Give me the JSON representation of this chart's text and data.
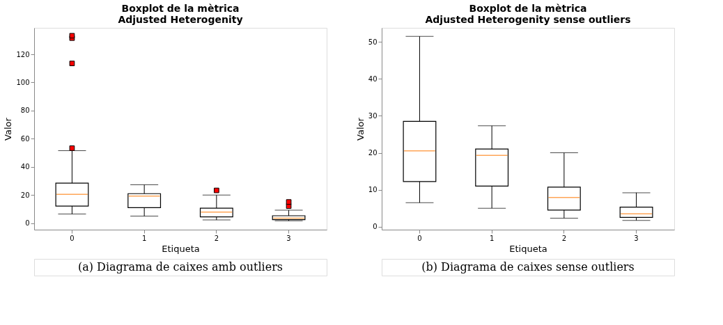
{
  "chart_data": [
    {
      "type": "box",
      "title": "Boxplot de la mètrica\nAdjusted Heterogenity",
      "xlabel": "Etiqueta",
      "ylabel": "Valor",
      "categories": [
        "0",
        "1",
        "2",
        "3"
      ],
      "ylim": [
        -4.6,
        138.8
      ],
      "yticks": [
        0,
        20,
        40,
        60,
        80,
        100,
        120
      ],
      "grid": false,
      "marker": "square",
      "series": [
        {
          "color": "#000000",
          "boxes": [
            {
              "low": 6.5,
              "q1": 12.2,
              "median": 20.5,
              "q3": 28.5,
              "high": 51.5,
              "outliers": [
                53.3,
                113.5,
                131.5,
                133.2
              ]
            },
            {
              "low": 5.0,
              "q1": 11.0,
              "median": 19.3,
              "q3": 21.0,
              "high": 27.3
            },
            {
              "low": 2.3,
              "q1": 4.5,
              "median": 7.9,
              "q3": 10.7,
              "high": 20.0,
              "outliers": [
                23.3
              ]
            },
            {
              "low": 1.7,
              "q1": 2.5,
              "median": 3.5,
              "q3": 5.3,
              "high": 9.2,
              "outliers": [
                12.1,
                15.1
              ]
            }
          ]
        }
      ],
      "annotations": [
        "(a) Diagrama de caixes amb outliers"
      ]
    },
    {
      "type": "box",
      "title": "Boxplot de la mètrica\nAdjusted Heterogenity sense outliers",
      "xlabel": "Etiqueta",
      "ylabel": "Valor",
      "categories": [
        "0",
        "1",
        "2",
        "3"
      ],
      "ylim": [
        -0.8,
        53.8
      ],
      "yticks": [
        0,
        10,
        20,
        30,
        40,
        50
      ],
      "grid": false,
      "series": [
        {
          "color": "#000000",
          "boxes": [
            {
              "low": 6.5,
              "q1": 12.2,
              "median": 20.5,
              "q3": 28.5,
              "high": 51.5
            },
            {
              "low": 5.0,
              "q1": 11.0,
              "median": 19.3,
              "q3": 21.0,
              "high": 27.3
            },
            {
              "low": 2.3,
              "q1": 4.5,
              "median": 7.9,
              "q3": 10.7,
              "high": 20.0
            },
            {
              "low": 1.7,
              "q1": 2.5,
              "median": 3.5,
              "q3": 5.3,
              "high": 9.2
            }
          ]
        }
      ],
      "annotations": [
        "(b) Diagrama de caixes sense outliers"
      ]
    }
  ]
}
